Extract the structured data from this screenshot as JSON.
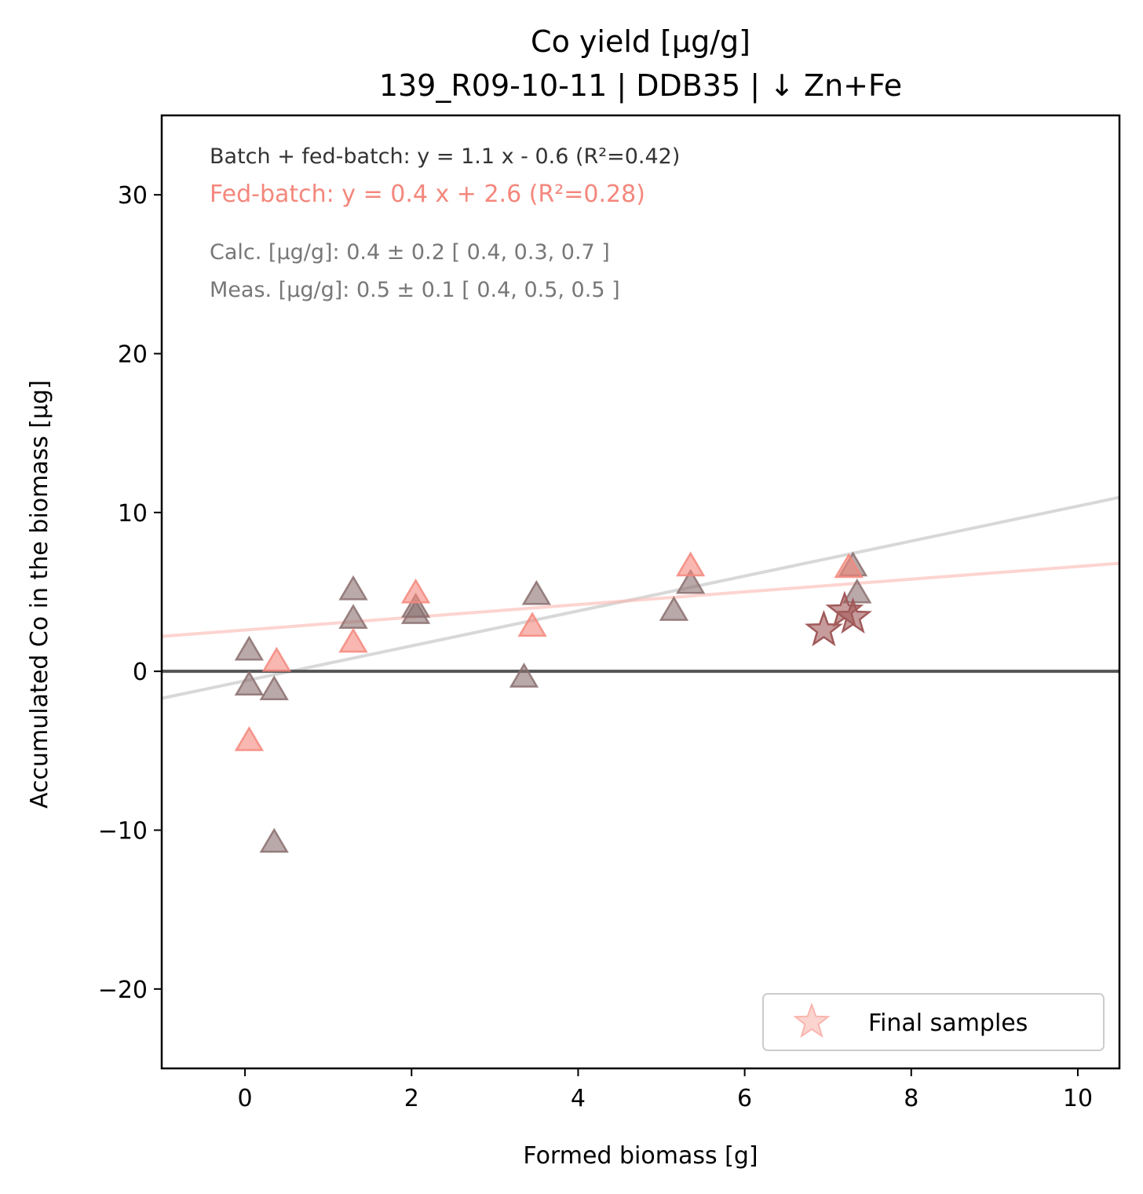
{
  "chart_data": {
    "type": "scatter",
    "title": "Co yield [µg/g]",
    "subtitle": "139_R09-10-11  |  DDB35  |  ↓ Zn+Fe",
    "xlabel": "Formed biomass [g]",
    "ylabel": "Accumulated Co in the biomass [µg]",
    "xlim": [
      -1.0,
      10.5
    ],
    "ylim": [
      -25,
      35
    ],
    "xticks": [
      0,
      2,
      4,
      6,
      8,
      10
    ],
    "xtick_labels": [
      "0",
      "2",
      "4",
      "6",
      "8",
      "10"
    ],
    "yticks": [
      -20,
      -10,
      0,
      10,
      20,
      30
    ],
    "ytick_labels": [
      "−20",
      "−10",
      "0",
      "10",
      "20",
      "30"
    ],
    "grid": false,
    "legend_position": "lower-right",
    "annotations": {
      "fit_all": "Batch + fed-batch: y = 1.1 x - 0.6 (R²=0.42)",
      "fit_fed": "Fed-batch: y = 0.4 x + 2.6 (R²=0.28)",
      "calc": "Calc. [µg/g]: 0.4 ± 0.2 [ 0.4, 0.3, 0.7 ]",
      "meas": "Meas. [µg/g]: 0.5 ± 0.1 [ 0.4, 0.5, 0.5 ]"
    },
    "colors": {
      "batch": "#8b6f6f",
      "fed": "#f4877c",
      "fit_all": "#c8c8c8",
      "fit_fed": "#fbb8b0",
      "zero_line": "#555555",
      "stars": "#a15a5a",
      "legend_star": "#fbd4d0",
      "text_main": "#333333",
      "text_fed": "#f4877c",
      "text_gray": "#777777"
    },
    "fit_lines": [
      {
        "slope": 1.1,
        "intercept": -0.6,
        "style": "all"
      },
      {
        "slope": 0.4,
        "intercept": 2.6,
        "style": "fed"
      }
    ],
    "zero_line_y": 0,
    "series": [
      {
        "marker": "triangle",
        "style": "batch",
        "points": [
          {
            "x": 0.05,
            "y": 1.3
          },
          {
            "x": 0.05,
            "y": -0.9
          },
          {
            "x": 0.35,
            "y": -1.2
          },
          {
            "x": 0.35,
            "y": -10.8
          },
          {
            "x": 1.3,
            "y": 5.1
          },
          {
            "x": 1.3,
            "y": 3.3
          },
          {
            "x": 2.05,
            "y": 4.0
          },
          {
            "x": 2.05,
            "y": 3.6
          },
          {
            "x": 3.35,
            "y": -0.4
          },
          {
            "x": 3.5,
            "y": 4.8
          },
          {
            "x": 5.15,
            "y": 3.8
          },
          {
            "x": 5.35,
            "y": 5.5
          },
          {
            "x": 7.3,
            "y": 6.6
          },
          {
            "x": 7.35,
            "y": 4.9
          }
        ]
      },
      {
        "marker": "triangle",
        "style": "fed",
        "points": [
          {
            "x": 0.05,
            "y": -4.4
          },
          {
            "x": 0.38,
            "y": 0.6
          },
          {
            "x": 1.3,
            "y": 1.8
          },
          {
            "x": 2.05,
            "y": 4.9
          },
          {
            "x": 3.45,
            "y": 2.8
          },
          {
            "x": 5.35,
            "y": 6.6
          },
          {
            "x": 7.25,
            "y": 6.5
          }
        ]
      },
      {
        "name": "Final samples",
        "marker": "star",
        "style": "stars",
        "points": [
          {
            "x": 6.95,
            "y": 2.6
          },
          {
            "x": 7.2,
            "y": 3.8
          },
          {
            "x": 7.3,
            "y": 3.4
          }
        ]
      }
    ]
  }
}
